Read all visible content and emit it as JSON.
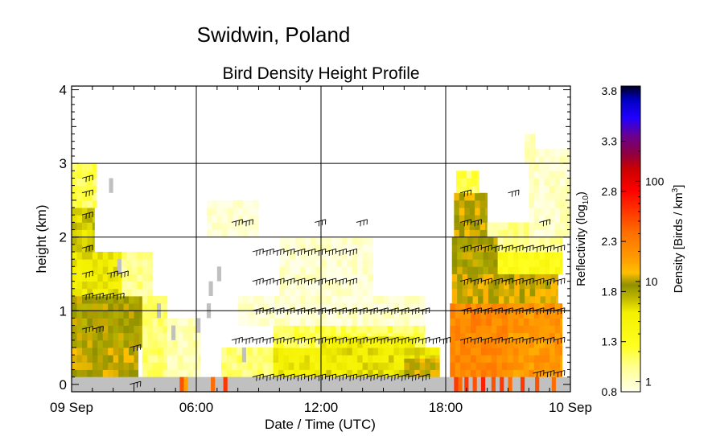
{
  "chart_data": {
    "type": "heatmap",
    "site_title": "Swidwin, Poland",
    "title": "Bird Density Height Profile",
    "xlabel": "Date / Time (UTC)",
    "ylabel": "height (km)",
    "x_tick_labels": [
      "09 Sep",
      "06:00",
      "12:00",
      "18:00",
      "10 Sep"
    ],
    "x_tick_hours": [
      0,
      6,
      12,
      18,
      24
    ],
    "xlim_hours": [
      0,
      24
    ],
    "y_ticks": [
      0,
      1,
      2,
      3,
      4
    ],
    "ylim_km": [
      -0.1,
      4.05
    ],
    "grid": true,
    "colorbar": {
      "left_label": "Reflectivity (log",
      "left_label_sub": "10",
      "left_label_end": ")",
      "right_label": "Density [Birds / km",
      "right_label_sup": "3",
      "right_label_end": "]",
      "reflectivity_ticks": [
        "0.8",
        "1.3",
        "1.8",
        "2.3",
        "2.8",
        "3.3",
        "3.8"
      ],
      "reflectivity_range": [
        0.8,
        3.85
      ],
      "density_ticks": [
        {
          "label": "1",
          "value": 1
        },
        {
          "label": "10",
          "value": 10
        },
        {
          "label": "100",
          "value": 100
        }
      ],
      "density_refl_offset": 0.9,
      "color_stops": [
        [
          0.0,
          "#ffffe8"
        ],
        [
          0.08,
          "#ffff90"
        ],
        [
          0.15,
          "#ffff20"
        ],
        [
          0.26,
          "#f4f000"
        ],
        [
          0.3,
          "#c8c000"
        ],
        [
          0.35,
          "#909000"
        ],
        [
          0.39,
          "#ffc000"
        ],
        [
          0.43,
          "#ffa000"
        ],
        [
          0.52,
          "#ff7000"
        ],
        [
          0.6,
          "#ff3000"
        ],
        [
          0.66,
          "#ff0000"
        ],
        [
          0.73,
          "#cc0000"
        ],
        [
          0.78,
          "#900040"
        ],
        [
          0.84,
          "#6a0090"
        ],
        [
          0.9,
          "#2000ff"
        ],
        [
          0.96,
          "#0000c0"
        ],
        [
          1.0,
          "#000030"
        ]
      ]
    },
    "row_height_km": 0.1,
    "col_width_hours": 0.25,
    "segments": [
      {
        "h": [
          0.0,
          0.5
        ],
        "t0": 0.0,
        "t1": 3.2,
        "v": 1.9
      },
      {
        "h": [
          0.5,
          1.2
        ],
        "t0": 0.0,
        "t1": 3.5,
        "v": 1.85
      },
      {
        "h": [
          1.2,
          1.8
        ],
        "t0": 0.0,
        "t1": 2.4,
        "v": 1.6
      },
      {
        "h": [
          1.2,
          1.8
        ],
        "t0": 2.4,
        "t1": 3.9,
        "v": 1.05
      },
      {
        "h": [
          1.8,
          2.4
        ],
        "t0": 0.0,
        "t1": 1.1,
        "v": 1.7
      },
      {
        "h": [
          2.4,
          3.0
        ],
        "t0": 0.0,
        "t1": 1.2,
        "v": 1.15
      },
      {
        "h": [
          0.1,
          1.2
        ],
        "t0": 3.4,
        "t1": 4.6,
        "v": 1.1
      },
      {
        "h": [
          0.1,
          0.9
        ],
        "t0": 4.6,
        "t1": 6.2,
        "v": 0.95
      },
      {
        "h": [
          0.1,
          0.5
        ],
        "t0": 7.2,
        "t1": 9.7,
        "v": 1.1
      },
      {
        "h": [
          0.1,
          0.5
        ],
        "t0": 9.7,
        "t1": 12.0,
        "v": 1.55
      },
      {
        "h": [
          0.5,
          0.8
        ],
        "t0": 9.7,
        "t1": 17.0,
        "v": 1.15
      },
      {
        "h": [
          0.1,
          0.5
        ],
        "t0": 12.0,
        "t1": 17.7,
        "v": 1.6
      },
      {
        "h": [
          0.5,
          0.65
        ],
        "t0": 12.0,
        "t1": 16.5,
        "v": 1.55
      },
      {
        "h": [
          0.1,
          0.35
        ],
        "t0": 16.0,
        "t1": 17.7,
        "v": 1.9
      },
      {
        "h": [
          0.1,
          1.1
        ],
        "t0": 18.2,
        "t1": 21.0,
        "v": 2.25
      },
      {
        "h": [
          1.1,
          1.5
        ],
        "t0": 18.3,
        "t1": 23.4,
        "v": 1.95
      },
      {
        "h": [
          0.1,
          1.1
        ],
        "t0": 21.0,
        "t1": 23.6,
        "v": 2.15
      },
      {
        "h": [
          1.5,
          2.0
        ],
        "t0": 18.3,
        "t1": 20.5,
        "v": 1.85
      },
      {
        "h": [
          1.5,
          1.8
        ],
        "t0": 20.5,
        "t1": 23.6,
        "v": 1.35
      },
      {
        "h": [
          1.8,
          2.0
        ],
        "t0": 20.5,
        "t1": 23.6,
        "v": 1.05
      },
      {
        "h": [
          2.0,
          2.6
        ],
        "t0": 18.4,
        "t1": 20.0,
        "v": 1.9
      },
      {
        "h": [
          2.6,
          2.9
        ],
        "t0": 18.5,
        "t1": 19.6,
        "v": 1.15
      },
      {
        "h": [
          2.0,
          2.2
        ],
        "t0": 20.0,
        "t1": 22.5,
        "v": 1.05
      },
      {
        "h": [
          2.0,
          3.2
        ],
        "t0": 22.0,
        "t1": 24.0,
        "v": 0.9
      },
      {
        "h": [
          3.0,
          3.4
        ],
        "t0": 21.8,
        "t1": 22.3,
        "v": 0.95
      },
      {
        "h": [
          1.2,
          2.0
        ],
        "t0": 10.0,
        "t1": 14.5,
        "v": 0.86
      },
      {
        "h": [
          0.8,
          1.2
        ],
        "t0": 8.0,
        "t1": 17.0,
        "v": 0.86
      },
      {
        "h": [
          2.0,
          2.5
        ],
        "t0": 6.5,
        "t1": 9.0,
        "v": 0.85
      }
    ],
    "ground_clutter": {
      "h": [
        -0.1,
        0.1
      ],
      "color": "#c0c0c0",
      "t0": 0.0,
      "t1": 24.0
    },
    "ground_hot_spots": [
      {
        "t": 5.2,
        "v": 2.5
      },
      {
        "t": 5.4,
        "v": 2.1
      },
      {
        "t": 6.7,
        "v": 2.4
      },
      {
        "t": 7.3,
        "v": 2.6
      },
      {
        "t": 18.4,
        "v": 2.6
      },
      {
        "t": 18.6,
        "v": 2.4
      },
      {
        "t": 18.9,
        "v": 2.6
      },
      {
        "t": 19.3,
        "v": 2.5
      },
      {
        "t": 19.7,
        "v": 2.7
      },
      {
        "t": 20.2,
        "v": 2.5
      },
      {
        "t": 20.6,
        "v": 2.6
      },
      {
        "t": 21.0,
        "v": 2.4
      },
      {
        "t": 21.6,
        "v": 2.6
      },
      {
        "t": 22.3,
        "v": 2.5
      },
      {
        "t": 23.1,
        "v": 2.4
      }
    ],
    "grey_blocks": [
      {
        "t": 1.8,
        "h": [
          2.6,
          2.8
        ]
      },
      {
        "t": 2.2,
        "h": [
          1.5,
          1.7
        ]
      },
      {
        "t": 4.1,
        "h": [
          0.9,
          1.1
        ]
      },
      {
        "t": 4.8,
        "h": [
          0.6,
          0.8
        ]
      },
      {
        "t": 6.0,
        "h": [
          0.7,
          0.9
        ]
      },
      {
        "t": 6.5,
        "h": [
          0.9,
          1.1
        ]
      },
      {
        "t": 6.6,
        "h": [
          1.2,
          1.4
        ]
      },
      {
        "t": 7.0,
        "h": [
          1.4,
          1.6
        ]
      },
      {
        "t": 8.2,
        "h": [
          0.3,
          0.5
        ]
      }
    ],
    "wind_barbs": {
      "direction_deg": 255,
      "rows": [
        {
          "h": 2.8,
          "times": [
            0.5
          ]
        },
        {
          "h": 2.6,
          "times": [
            0.5
          ]
        },
        {
          "h": 2.3,
          "times": [
            0.5
          ]
        },
        {
          "h": 1.85,
          "times": [
            0.5
          ]
        },
        {
          "h": 1.5,
          "times": [
            0.5,
            1.7,
            2.2
          ]
        },
        {
          "h": 1.2,
          "times": [
            0.5,
            1.0,
            1.5,
            2.0
          ]
        },
        {
          "h": 0.75,
          "times": [
            0.5,
            1.0
          ]
        },
        {
          "h": 0.5,
          "times": [
            2.8
          ]
        },
        {
          "h": 0.0,
          "times": [
            2.8
          ]
        },
        {
          "h": 2.2,
          "times": [
            7.7,
            8.2,
            11.7,
            13.7
          ]
        },
        {
          "h": 1.8,
          "times": [
            8.7,
            9.2,
            9.7,
            10.2,
            10.7,
            11.2,
            11.7,
            12.2,
            12.7,
            13.2
          ]
        },
        {
          "h": 1.4,
          "times": [
            8.7,
            9.2,
            9.7,
            10.2,
            10.7,
            11.2,
            11.7,
            12.2,
            12.7,
            13.2
          ]
        },
        {
          "h": 1.0,
          "times": [
            8.7,
            9.2,
            9.7,
            10.2,
            10.7,
            11.2,
            11.7,
            12.2,
            12.7,
            13.2,
            13.7,
            14.2,
            14.7,
            15.2,
            15.7,
            16.2,
            16.7
          ]
        },
        {
          "h": 0.6,
          "times": [
            7.7,
            8.2,
            8.7,
            9.2,
            9.7,
            10.2,
            10.7,
            11.2,
            11.7,
            12.2,
            12.7,
            13.2,
            13.7,
            14.2,
            14.7,
            15.2,
            15.7,
            16.2,
            16.7,
            17.2,
            17.7
          ]
        },
        {
          "h": 0.1,
          "times": [
            8.7,
            9.2,
            9.7,
            10.2,
            10.7,
            11.2,
            11.7,
            12.2,
            12.7,
            13.2,
            13.7,
            14.2,
            14.7,
            15.2,
            15.7,
            16.2,
            16.7
          ]
        },
        {
          "h": 2.6,
          "times": [
            18.7,
            21.0
          ]
        },
        {
          "h": 2.2,
          "times": [
            18.7,
            19.2,
            22.5
          ]
        },
        {
          "h": 1.85,
          "times": [
            18.7,
            19.2,
            19.7,
            20.2,
            20.7,
            21.2,
            21.7,
            22.2,
            22.7,
            23.2
          ]
        },
        {
          "h": 1.4,
          "times": [
            18.7,
            19.2,
            19.7,
            20.2,
            20.7,
            21.2,
            21.7,
            22.2,
            22.7,
            23.2
          ]
        },
        {
          "h": 1.0,
          "times": [
            18.7,
            19.2,
            19.7,
            20.2,
            20.7,
            21.2,
            21.7,
            22.2,
            22.7,
            23.2
          ]
        },
        {
          "h": 0.6,
          "times": [
            18.7,
            19.2,
            19.7,
            20.2,
            20.7,
            21.2,
            21.7,
            22.2,
            22.7,
            23.2
          ]
        },
        {
          "h": 0.15,
          "times": [
            22.2,
            22.7,
            23.2
          ]
        }
      ]
    }
  }
}
